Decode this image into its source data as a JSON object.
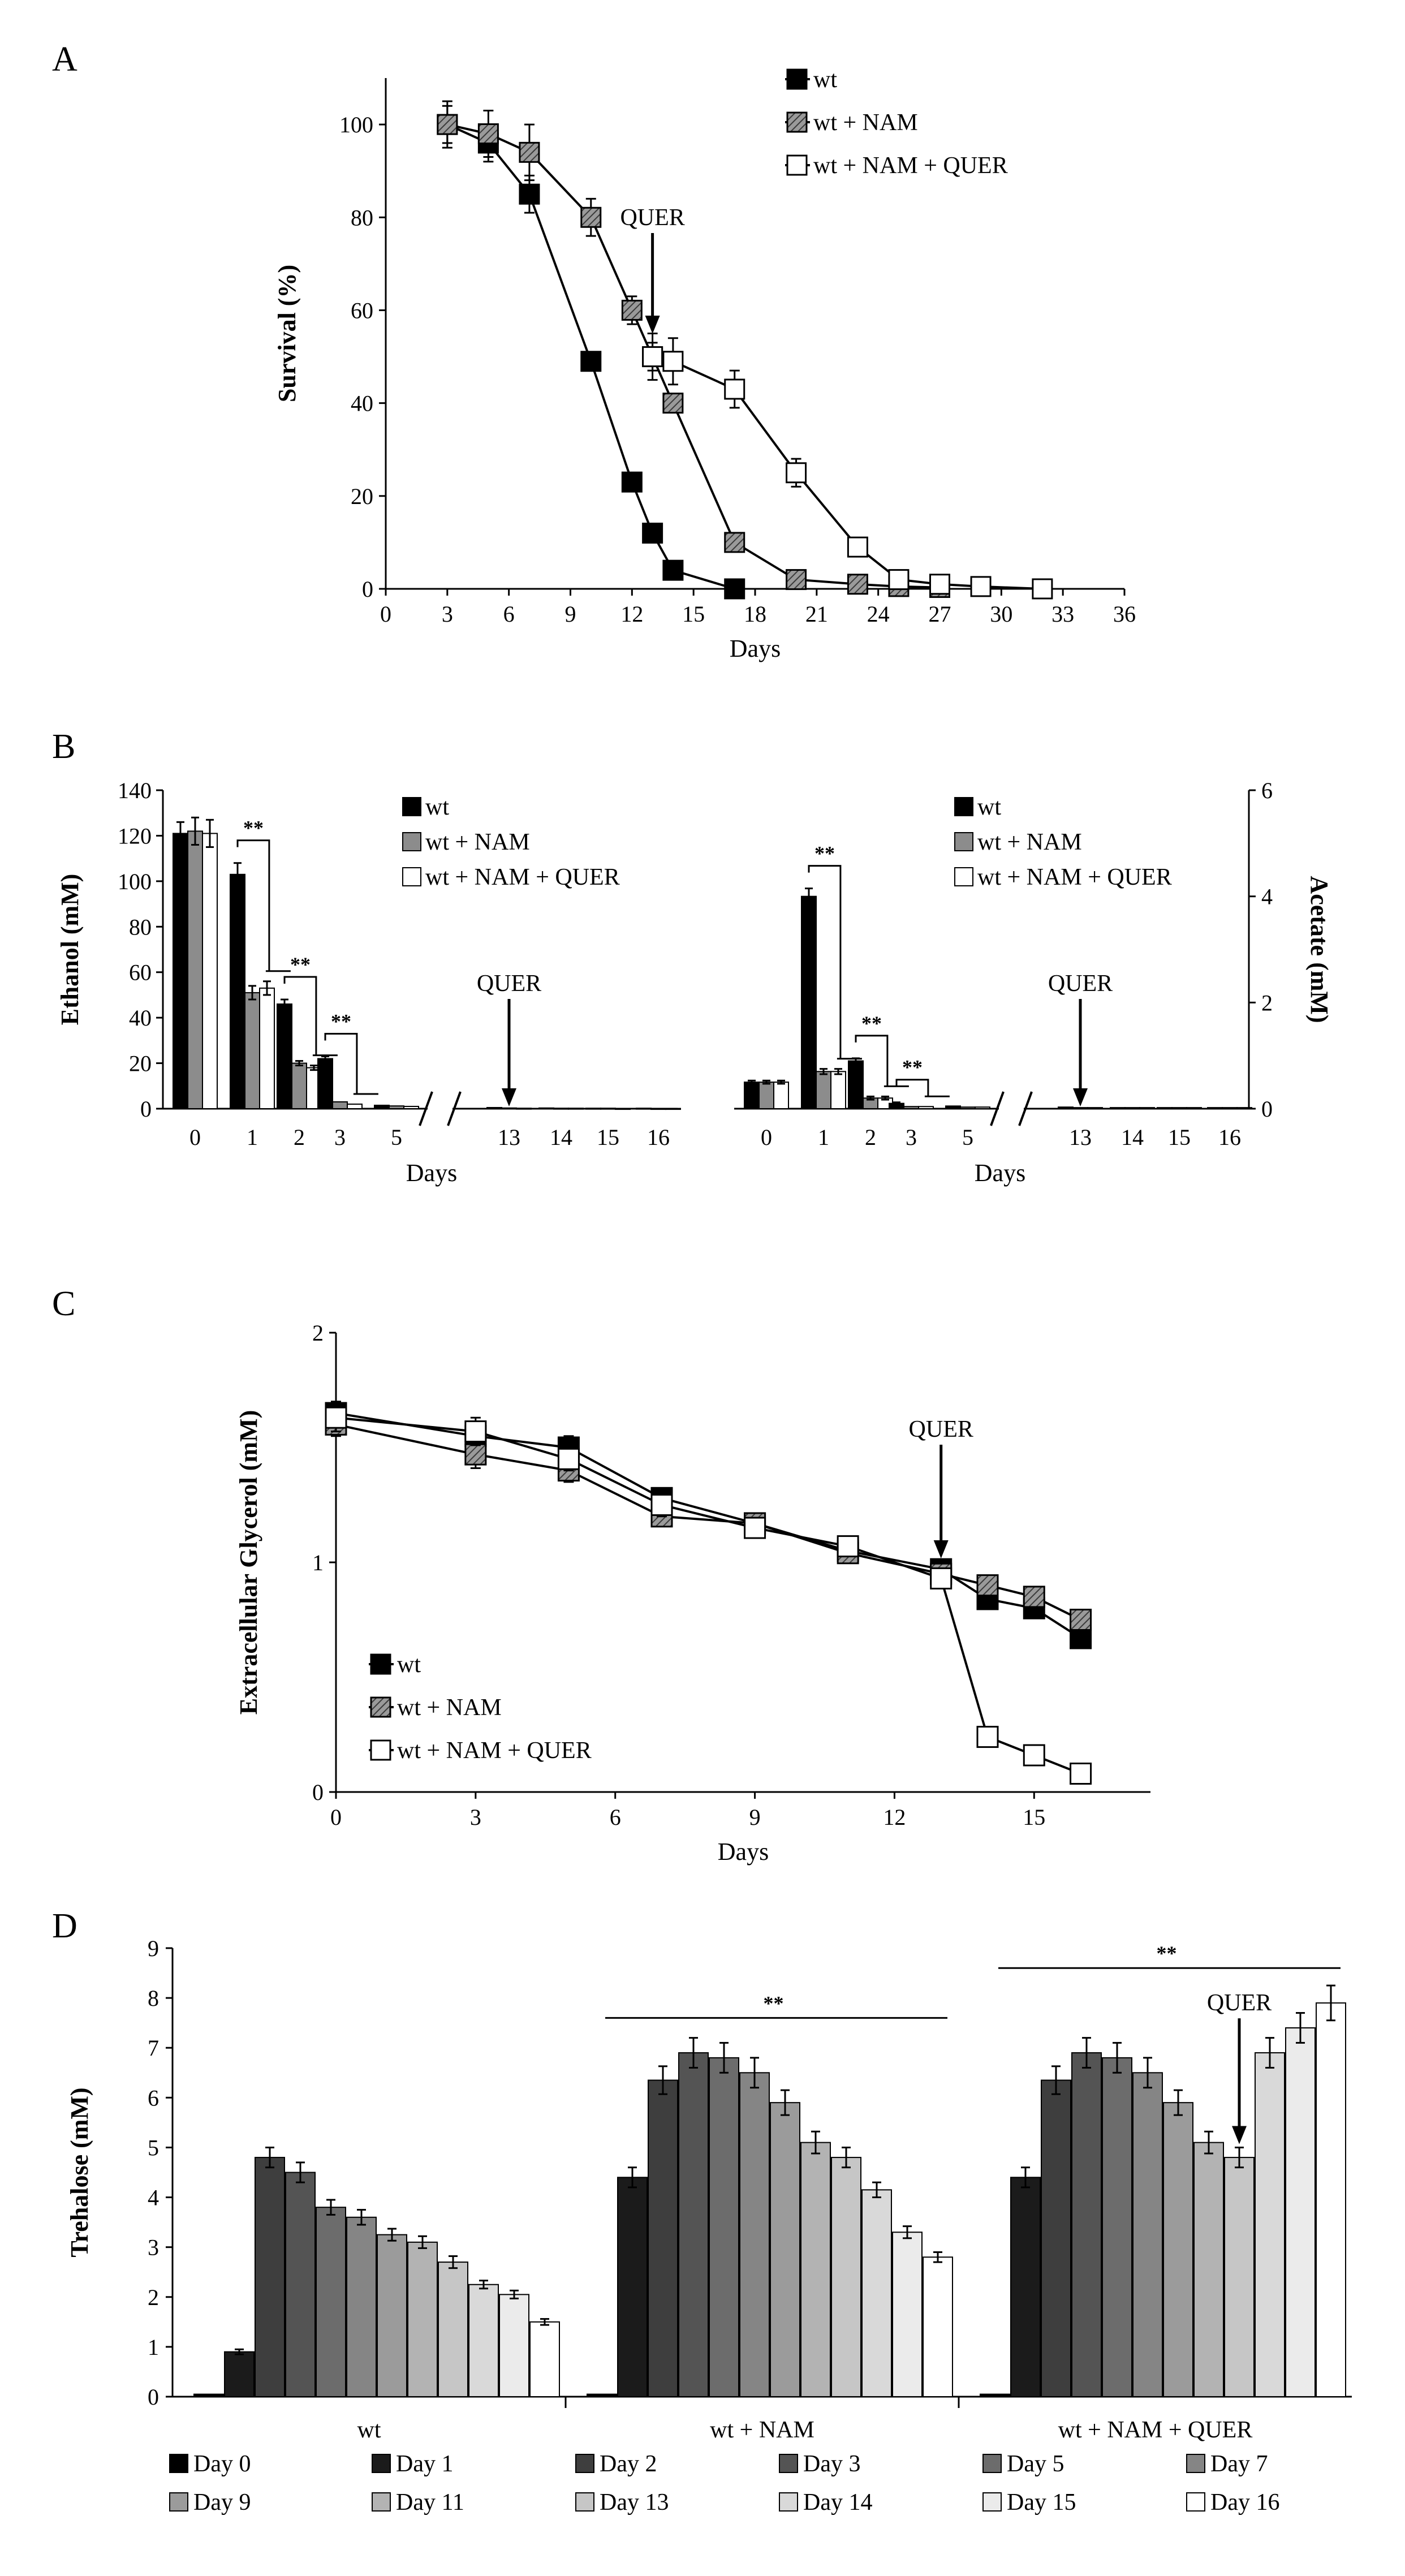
{
  "figure": {
    "panel_labels": [
      "A",
      "B",
      "C",
      "D"
    ]
  },
  "chart_data": [
    {
      "id": "A",
      "type": "line",
      "xlabel": "Days",
      "ylabel": "Survival (%)",
      "xlim": [
        0,
        36
      ],
      "ylim": [
        0,
        110
      ],
      "xticks": [
        "0",
        "3",
        "6",
        "9",
        "12",
        "15",
        "18",
        "21",
        "24",
        "27",
        "30",
        "33",
        "36"
      ],
      "yticks": [
        "0",
        "20",
        "40",
        "60",
        "80",
        "100"
      ],
      "annotation": {
        "text": "QUER",
        "x": 13
      },
      "series": [
        {
          "name": "wt",
          "fill": "#000000",
          "x": [
            3,
            5,
            7,
            10,
            12,
            13,
            14,
            17
          ],
          "y": [
            100,
            96,
            85,
            49,
            23,
            12,
            4,
            0
          ],
          "err": [
            5,
            4,
            4,
            2,
            2,
            1,
            1,
            0
          ]
        },
        {
          "name": "wt + NAM",
          "fill": "hatch",
          "x": [
            3,
            5,
            7,
            10,
            12,
            13,
            14,
            17,
            20,
            23,
            25,
            27
          ],
          "y": [
            100,
            98,
            94,
            80,
            60,
            50,
            40,
            10,
            2,
            1,
            0.5,
            0.3
          ],
          "err": [
            4,
            5,
            6,
            4,
            3,
            3,
            2,
            1,
            1,
            0,
            0,
            0
          ]
        },
        {
          "name": "wt + NAM + QUER",
          "fill": "#ffffff",
          "x": [
            13,
            14,
            17,
            20,
            23,
            25,
            27,
            29,
            32
          ],
          "y": [
            50,
            49,
            43,
            25,
            9,
            2,
            1,
            0.5,
            0
          ],
          "err": [
            5,
            5,
            4,
            3,
            1,
            1,
            0,
            0,
            0
          ]
        }
      ]
    },
    {
      "id": "B-left",
      "type": "bar",
      "ylabel": "Ethanol (mM)",
      "xlabel": "Days",
      "ylim": [
        0,
        140
      ],
      "yticks": [
        "0",
        "20",
        "40",
        "60",
        "80",
        "100",
        "120",
        "140"
      ],
      "categories": [
        "0",
        "1",
        "2",
        "3",
        "5",
        "13",
        "14",
        "15",
        "16"
      ],
      "series": [
        {
          "name": "wt",
          "fill": "#000000",
          "values": [
            121,
            103,
            46,
            22,
            1.5,
            0.5,
            0.3,
            0.2,
            0.2
          ],
          "err": [
            5,
            5,
            2,
            1,
            0,
            0,
            0,
            0,
            0
          ]
        },
        {
          "name": "wt + NAM",
          "fill": "#8c8c8c",
          "values": [
            122,
            51,
            20,
            3,
            1.2,
            0.3,
            0.2,
            0.2,
            0.1
          ],
          "err": [
            6,
            3,
            1,
            0,
            0,
            0,
            0,
            0,
            0
          ]
        },
        {
          "name": "wt + NAM + QUER",
          "fill": "#ffffff",
          "values": [
            121,
            53,
            18,
            2,
            1,
            0.2,
            0.2,
            0.1,
            0.1
          ],
          "err": [
            6,
            3,
            1,
            0,
            0,
            0,
            0,
            0,
            0
          ]
        }
      ],
      "significance": [
        {
          "category": "1",
          "label": "**"
        },
        {
          "category": "2",
          "label": "**"
        },
        {
          "category": "3",
          "label": "**"
        }
      ],
      "annotation": {
        "text": "QUER",
        "category": "13"
      }
    },
    {
      "id": "B-right",
      "type": "bar",
      "ylabel": "Acetate (mM)",
      "xlabel": "Days",
      "ylim": [
        0,
        6
      ],
      "yticks": [
        "0",
        "2",
        "4",
        "6"
      ],
      "categories": [
        "0",
        "1",
        "2",
        "3",
        "5",
        "13",
        "14",
        "15",
        "16"
      ],
      "series": [
        {
          "name": "wt",
          "fill": "#000000",
          "values": [
            0.5,
            4.0,
            0.9,
            0.1,
            0.05,
            0.03,
            0.02,
            0.02,
            0.02
          ],
          "err": [
            0.03,
            0.15,
            0.05,
            0.02,
            0,
            0,
            0,
            0,
            0
          ]
        },
        {
          "name": "wt + NAM",
          "fill": "#8c8c8c",
          "values": [
            0.5,
            0.7,
            0.2,
            0.04,
            0.03,
            0.02,
            0.02,
            0.02,
            0.02
          ],
          "err": [
            0.03,
            0.05,
            0.03,
            0,
            0,
            0,
            0,
            0,
            0
          ]
        },
        {
          "name": "wt + NAM + QUER",
          "fill": "#ffffff",
          "values": [
            0.5,
            0.7,
            0.2,
            0.04,
            0.03,
            0.02,
            0.02,
            0.02,
            0.02
          ],
          "err": [
            0.03,
            0.05,
            0.03,
            0,
            0,
            0,
            0,
            0,
            0
          ]
        }
      ],
      "significance": [
        {
          "category": "1",
          "label": "**"
        },
        {
          "category": "2",
          "label": "**"
        },
        {
          "category": "3",
          "label": "**"
        }
      ],
      "annotation": {
        "text": "QUER",
        "category": "13"
      }
    },
    {
      "id": "C",
      "type": "line",
      "xlabel": "Days",
      "ylabel": "Extracellular Glycerol (mM)",
      "xlim": [
        0,
        17.5
      ],
      "ylim": [
        0,
        2
      ],
      "xticks": [
        "0",
        "3",
        "6",
        "9",
        "12",
        "15"
      ],
      "yticks": [
        "0",
        "1",
        "2"
      ],
      "annotation": {
        "text": "QUER",
        "x": 13
      },
      "series": [
        {
          "name": "wt",
          "fill": "#000000",
          "x": [
            0,
            3,
            5,
            7,
            9,
            11,
            13,
            14,
            15,
            16
          ],
          "y": [
            1.65,
            1.55,
            1.5,
            1.28,
            1.17,
            1.05,
            0.97,
            0.84,
            0.8,
            0.67
          ],
          "err": [
            0.05,
            0.05,
            0.05,
            0.04,
            0.03,
            0.03,
            0.03,
            0.02,
            0.02,
            0.02
          ]
        },
        {
          "name": "wt + NAM",
          "fill": "hatch",
          "x": [
            0,
            3,
            5,
            7,
            9,
            11,
            13,
            14,
            15,
            16
          ],
          "y": [
            1.6,
            1.47,
            1.4,
            1.2,
            1.17,
            1.04,
            0.95,
            0.9,
            0.85,
            0.75
          ],
          "err": [
            0.05,
            0.06,
            0.05,
            0.04,
            0.04,
            0.03,
            0.03,
            0.03,
            0.03,
            0.03
          ]
        },
        {
          "name": "wt + NAM + QUER",
          "fill": "#ffffff",
          "x": [
            0,
            3,
            5,
            7,
            9,
            11,
            13,
            14,
            15,
            16
          ],
          "y": [
            1.63,
            1.57,
            1.45,
            1.25,
            1.15,
            1.07,
            0.93,
            0.24,
            0.16,
            0.08
          ],
          "err": [
            0.06,
            0.06,
            0.05,
            0.05,
            0.04,
            0.04,
            0.04,
            0.02,
            0.02,
            0.01
          ]
        }
      ]
    },
    {
      "id": "D",
      "type": "bar",
      "ylabel": "Trehalose (mM)",
      "ylim": [
        0,
        9
      ],
      "yticks": [
        "0",
        "1",
        "2",
        "3",
        "4",
        "5",
        "6",
        "7",
        "8",
        "9"
      ],
      "groups": [
        "wt",
        "wt + NAM",
        "wt + NAM + QUER"
      ],
      "days": [
        "Day 0",
        "Day 1",
        "Day 2",
        "Day 3",
        "Day 5",
        "Day 7",
        "Day 9",
        "Day 11",
        "Day 13",
        "Day 14",
        "Day 15",
        "Day 16"
      ],
      "day_fills": [
        "#000000",
        "#1b1b1b",
        "#3e3e3e",
        "#545454",
        "#6c6c6c",
        "#858585",
        "#9b9b9b",
        "#b3b3b3",
        "#c6c6c6",
        "#d9d9d9",
        "#ebebeb",
        "#ffffff"
      ],
      "series": [
        {
          "name": "wt",
          "values": [
            0.05,
            0.9,
            4.8,
            4.5,
            3.8,
            3.6,
            3.25,
            3.1,
            2.7,
            2.25,
            2.05,
            1.5
          ],
          "err": [
            0,
            0.05,
            0.2,
            0.2,
            0.15,
            0.15,
            0.12,
            0.12,
            0.12,
            0.08,
            0.08,
            0.06
          ]
        },
        {
          "name": "wt + NAM",
          "values": [
            0.05,
            4.4,
            6.35,
            6.9,
            6.8,
            6.5,
            5.9,
            5.1,
            4.8,
            4.15,
            3.3,
            2.8
          ],
          "err": [
            0,
            0.2,
            0.28,
            0.3,
            0.3,
            0.3,
            0.25,
            0.22,
            0.2,
            0.15,
            0.12,
            0.1
          ]
        },
        {
          "name": "wt + NAM + QUER",
          "values": [
            0.05,
            4.4,
            6.35,
            6.9,
            6.8,
            6.5,
            5.9,
            5.1,
            4.8,
            6.9,
            7.4,
            7.9
          ],
          "err": [
            0,
            0.2,
            0.28,
            0.3,
            0.3,
            0.3,
            0.25,
            0.22,
            0.2,
            0.3,
            0.3,
            0.35
          ]
        }
      ],
      "significance": [
        {
          "label": "**",
          "group": "wt + NAM"
        },
        {
          "label": "**",
          "group": "wt + NAM + QUER"
        }
      ],
      "annotation": {
        "text": "QUER",
        "group": "wt + NAM + QUER",
        "day": "Day 13"
      }
    }
  ]
}
